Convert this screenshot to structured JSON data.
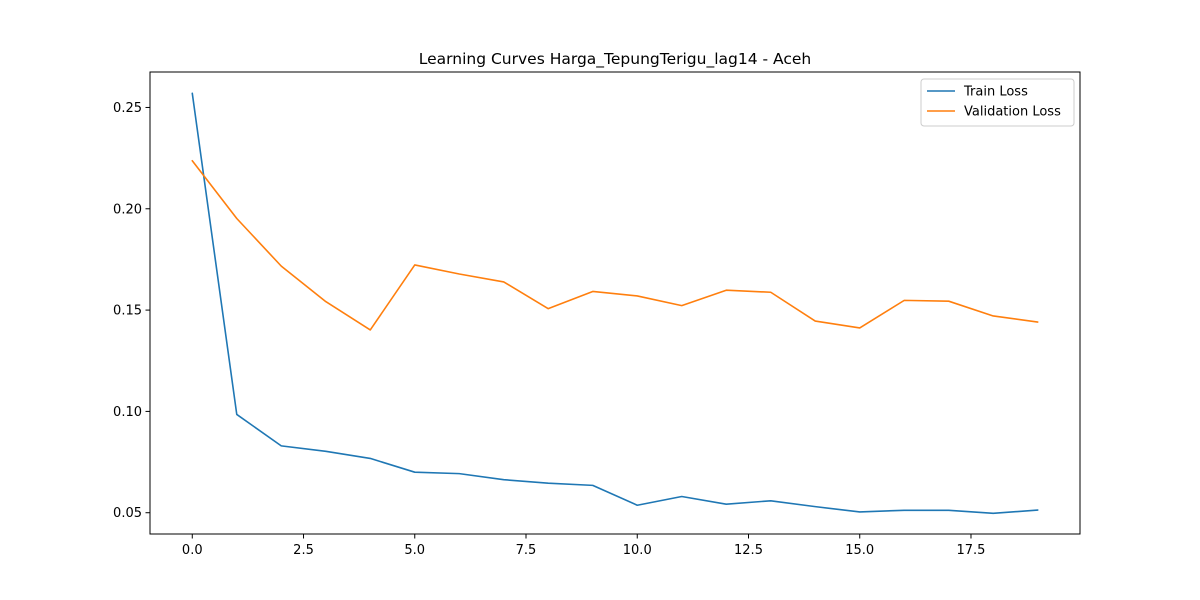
{
  "chart_data": {
    "type": "line",
    "title": "Learning Curves Harga_TepungTerigu_lag14 - Aceh",
    "xlabel": "",
    "ylabel": "",
    "x": [
      0,
      1,
      2,
      3,
      4,
      5,
      6,
      7,
      8,
      9,
      10,
      11,
      12,
      13,
      14,
      15,
      16,
      17,
      18,
      19
    ],
    "xlim": [
      -0.95,
      19.95
    ],
    "ylim": [
      0.0395,
      0.2675
    ],
    "xticks": [
      0.0,
      2.5,
      5.0,
      7.5,
      10.0,
      12.5,
      15.0,
      17.5
    ],
    "xtick_labels": [
      "0.0",
      "2.5",
      "5.0",
      "7.5",
      "10.0",
      "12.5",
      "15.0",
      "17.5"
    ],
    "yticks": [
      0.05,
      0.1,
      0.15,
      0.2,
      0.25
    ],
    "ytick_labels": [
      "0.05",
      "0.10",
      "0.15",
      "0.20",
      "0.25"
    ],
    "grid": false,
    "legend_position": "top-right",
    "series": [
      {
        "name": "Train Loss",
        "color": "#1f77b4",
        "values": [
          0.257,
          0.0985,
          0.083,
          0.0803,
          0.0768,
          0.07,
          0.0693,
          0.0663,
          0.0646,
          0.0635,
          0.0537,
          0.058,
          0.0542,
          0.0559,
          0.053,
          0.0504,
          0.0512,
          0.0512,
          0.0497,
          0.0513
        ]
      },
      {
        "name": "Validation Loss",
        "color": "#ff7f0e",
        "values": [
          0.2237,
          0.1952,
          0.1717,
          0.1542,
          0.1402,
          0.1723,
          0.1678,
          0.1639,
          0.1507,
          0.1592,
          0.157,
          0.1522,
          0.1598,
          0.1588,
          0.1446,
          0.1412,
          0.1548,
          0.1544,
          0.1471,
          0.1441
        ]
      }
    ]
  }
}
